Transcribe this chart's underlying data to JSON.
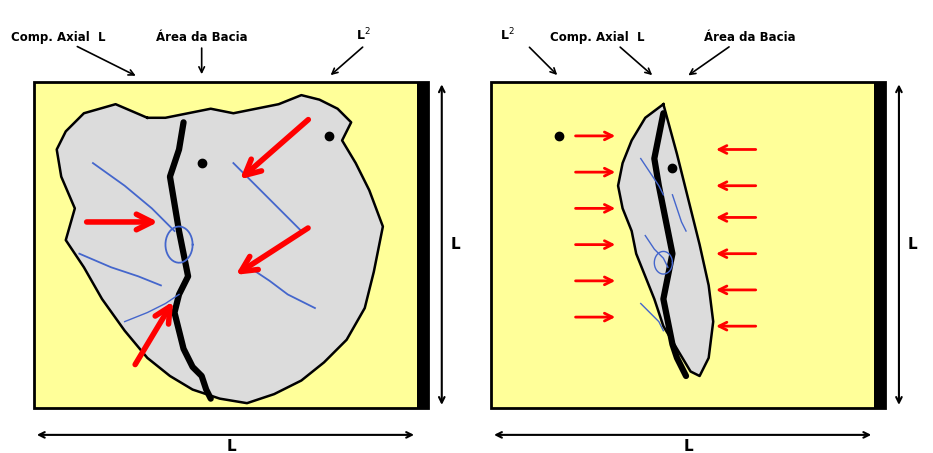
{
  "bg_color": "#FFFF99",
  "box_color": "#000000",
  "basin_fill": "#DCDCDC",
  "river_color": "#4466CC",
  "arrow_color": "#FF0000",
  "text_color": "#000000",
  "panel1": {
    "comp_axial": "Comp. Axial  L",
    "area_bacia": "Área da Bacia",
    "l2": "L",
    "l_bottom": "L",
    "l_right": "L"
  },
  "panel2": {
    "l2": "L",
    "comp_axial": "Comp. Axial  L",
    "area_bacia": "Área da Bacia",
    "l_bottom": "L",
    "l_right": "L"
  }
}
